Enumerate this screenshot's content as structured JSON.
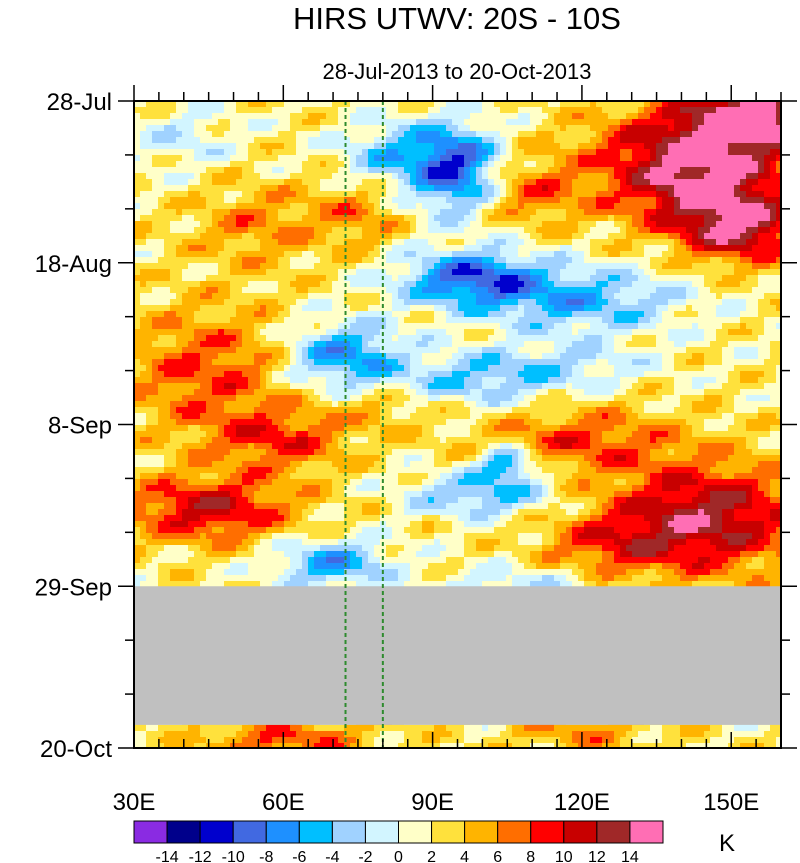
{
  "chart_data": {
    "type": "heatmap",
    "title": "HIRS UTWV: 20S - 10S",
    "subtitle": "28-Jul-2013 to 20-Oct-2013",
    "x_axis": {
      "range": [
        30,
        160
      ],
      "ticks": [
        30,
        60,
        90,
        120,
        150
      ],
      "tick_labels": [
        "30E",
        "60E",
        "90E",
        "120E",
        "150E"
      ],
      "minor_step": 5
    },
    "y_axis": {
      "range_days": [
        0,
        84
      ],
      "ticks": [
        0,
        21,
        42,
        63,
        84
      ],
      "tick_labels": [
        "28-Jul",
        "18-Aug",
        "8-Sep",
        "29-Sep",
        "20-Oct"
      ],
      "minor_step": 7
    },
    "missing_data_band_days": [
      63,
      81
    ],
    "missing_color": "#c0c0c0",
    "reference_lines_lon": [
      72.5,
      80
    ],
    "reference_line_color": "#2e8b2e",
    "colorbar": {
      "unit": "K",
      "levels": [
        -14,
        -12,
        -10,
        -8,
        -6,
        -4,
        -2,
        0,
        2,
        4,
        6,
        8,
        10,
        12,
        14
      ],
      "level_labels": [
        "-14",
        "-12",
        "-10",
        "-8",
        "-6",
        "-4",
        "-2",
        "0",
        "2",
        "4",
        "6",
        "8",
        "10",
        "12",
        "14"
      ],
      "colors": [
        "#8a2be2",
        "#00008b",
        "#0000cd",
        "#4169e1",
        "#1e90ff",
        "#00bfff",
        "#a0d2ff",
        "#d2f5ff",
        "#ffffc8",
        "#ffe13c",
        "#ffb400",
        "#ff6e00",
        "#ff0000",
        "#c80000",
        "#a02828",
        "#ff6eb4"
      ]
    }
  }
}
